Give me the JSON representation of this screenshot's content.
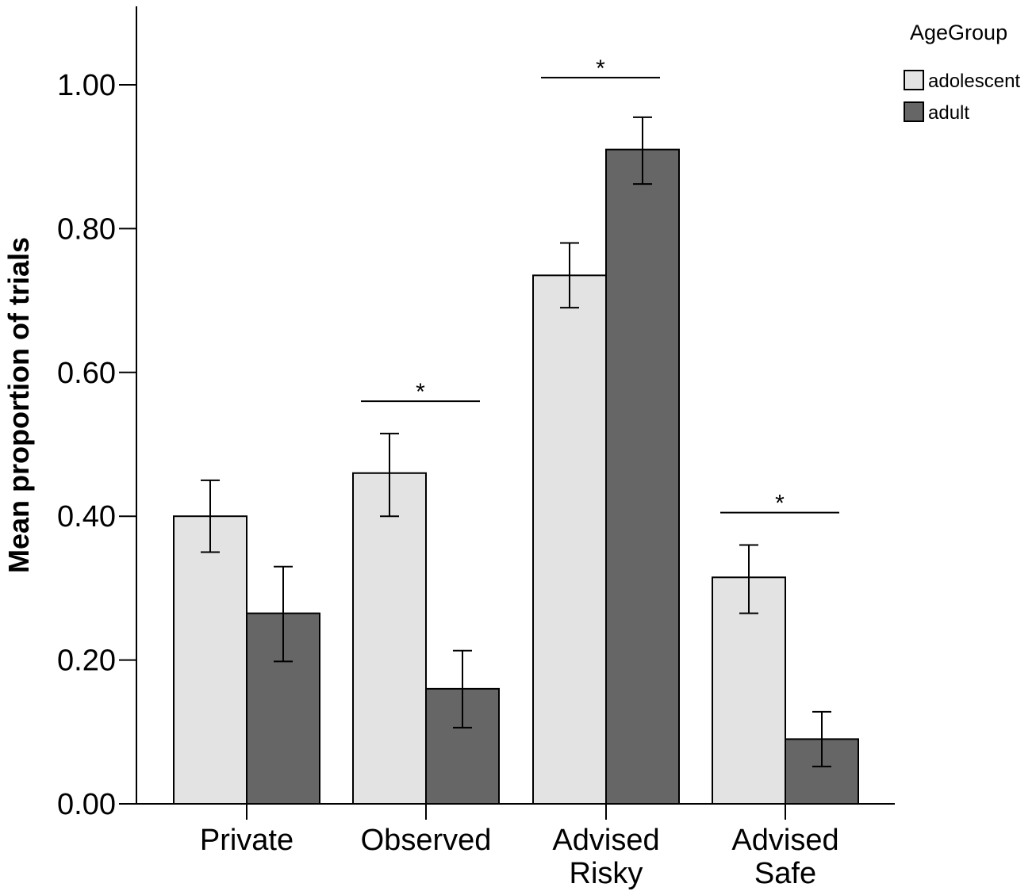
{
  "chart_data": {
    "type": "bar",
    "title": "",
    "xlabel": "",
    "ylabel": "Mean proportion of trials",
    "ylim": [
      0,
      1.1
    ],
    "yticks": [
      0.0,
      0.2,
      0.4,
      0.6,
      0.8,
      1.0
    ],
    "ytick_labels": [
      "0.00",
      "0.20",
      "0.40",
      "0.60",
      "0.80",
      "1.00"
    ],
    "categories": [
      [
        "Private"
      ],
      [
        "Observed"
      ],
      [
        "Advised",
        "Risky"
      ],
      [
        "Advised",
        "Safe"
      ]
    ],
    "legend": {
      "title": "AgeGroup",
      "position": "top-right"
    },
    "series": [
      {
        "name": "adolescent",
        "color": "#e3e3e3",
        "values": [
          0.4,
          0.46,
          0.735,
          0.315
        ],
        "error_low": [
          0.35,
          0.4,
          0.69,
          0.265
        ],
        "error_high": [
          0.45,
          0.515,
          0.78,
          0.36
        ]
      },
      {
        "name": "adult",
        "color": "#666666",
        "values": [
          0.265,
          0.16,
          0.91,
          0.09
        ],
        "error_low": [
          0.198,
          0.106,
          0.862,
          0.052
        ],
        "error_high": [
          0.33,
          0.213,
          0.955,
          0.128
        ]
      }
    ],
    "significance": [
      {
        "category_index": 1,
        "y": 0.56,
        "label": "*"
      },
      {
        "category_index": 2,
        "y": 1.01,
        "label": "*"
      },
      {
        "category_index": 3,
        "y": 0.405,
        "label": "*"
      }
    ]
  }
}
